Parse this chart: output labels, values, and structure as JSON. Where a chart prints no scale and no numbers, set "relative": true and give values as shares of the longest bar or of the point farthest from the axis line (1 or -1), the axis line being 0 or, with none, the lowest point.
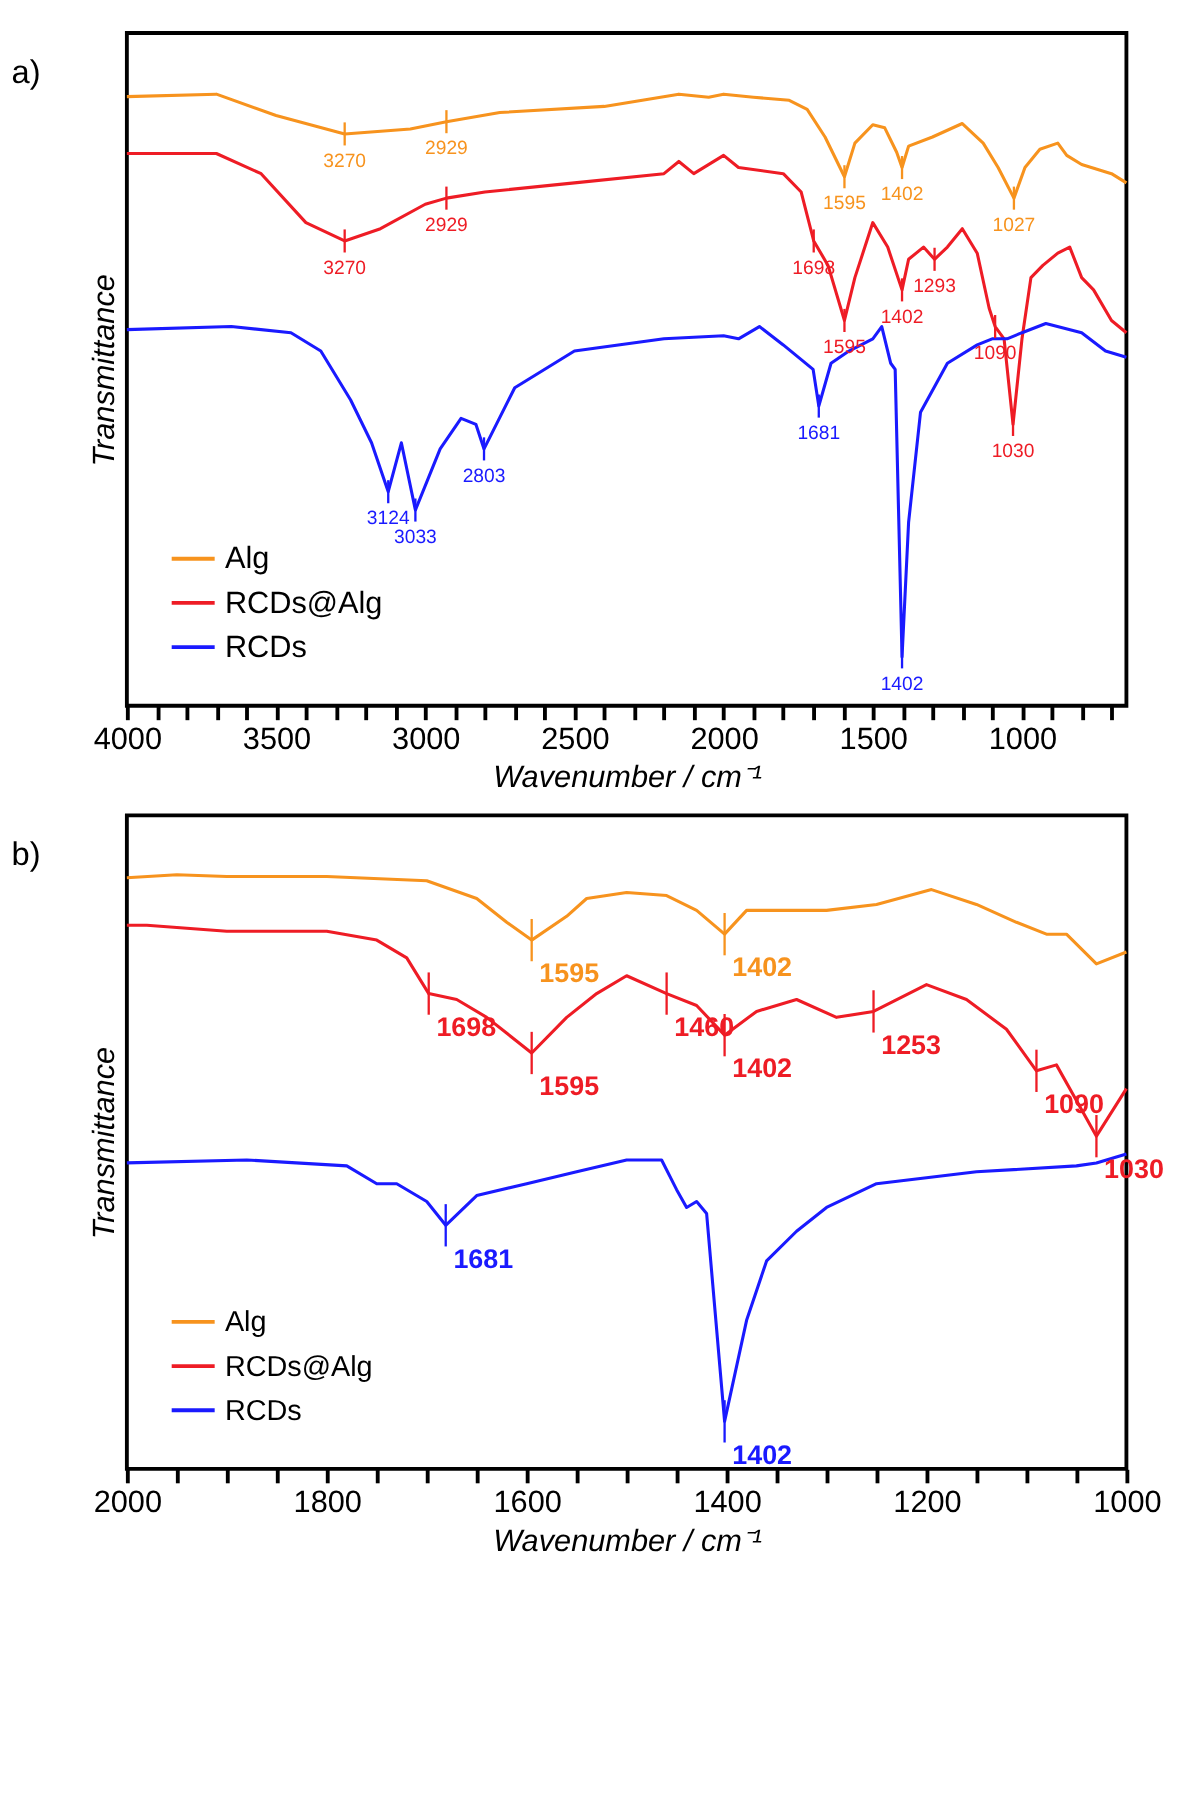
{
  "chart_data": [
    {
      "type": "line",
      "title": "a)",
      "xlabel": "Wavenumber / cm⁻¹",
      "ylabel": "Transmittance",
      "relative": true,
      "legend": "bottom left",
      "grid": false,
      "tick_labels": "x",
      "marker": "none",
      "line_style": "solid",
      "xlim": [
        4000,
        650
      ],
      "xticks": [
        4000,
        {
          "value": 3900,
          "label": null
        },
        {
          "value": 3800,
          "label": null
        },
        {
          "value": 3700,
          "label": null
        },
        {
          "value": 3600,
          "label": null
        },
        3500,
        {
          "value": 3400,
          "label": null
        },
        {
          "value": 3300,
          "label": null
        },
        {
          "value": 3200,
          "label": null
        },
        {
          "value": 3100,
          "label": null
        },
        3000,
        {
          "value": 2900,
          "label": null
        },
        {
          "value": 2800,
          "label": null
        },
        {
          "value": 2700,
          "label": null
        },
        {
          "value": 2600,
          "label": null
        },
        2500,
        {
          "value": 2400,
          "label": null
        },
        {
          "value": 2300,
          "label": null
        },
        {
          "value": 2200,
          "label": null
        },
        {
          "value": 2100,
          "label": null
        },
        2000,
        {
          "value": 1900,
          "label": null
        },
        {
          "value": 1800,
          "label": null
        },
        {
          "value": 1700,
          "label": null
        },
        {
          "value": 1600,
          "label": null
        },
        1500,
        {
          "value": 1400,
          "label": null
        },
        {
          "value": 1300,
          "label": null
        },
        {
          "value": 1200,
          "label": null
        },
        {
          "value": 1100,
          "label": null
        },
        1000,
        {
          "value": 900,
          "label": null
        },
        {
          "value": 800,
          "label": null
        },
        {
          "value": 700,
          "label": null
        }
      ],
      "series": [
        {
          "name": "Alg",
          "color": "#f7931e",
          "x": [
            4000,
            3700,
            3500,
            3270,
            3050,
            2929,
            2750,
            2400,
            2150,
            2050,
            2000,
            1900,
            1780,
            1720,
            1660,
            1595,
            1560,
            1500,
            1460,
            1420,
            1402,
            1380,
            1300,
            1200,
            1130,
            1080,
            1027,
            990,
            940,
            880,
            850,
            800,
            700,
            650
          ],
          "values": [
            0.996,
            1.0,
            0.965,
            0.935,
            0.943,
            0.955,
            0.97,
            0.98,
            1.0,
            0.995,
            1.0,
            0.995,
            0.99,
            0.975,
            0.93,
            0.865,
            0.92,
            0.95,
            0.945,
            0.905,
            0.88,
            0.915,
            0.93,
            0.952,
            0.92,
            0.88,
            0.83,
            0.88,
            0.91,
            0.92,
            0.9,
            0.885,
            0.87,
            0.855
          ]
        },
        {
          "name": "RCDs@Alg",
          "color": "#ee1c25",
          "x": [
            4000,
            3700,
            3550,
            3400,
            3270,
            3150,
            3000,
            2929,
            2800,
            2500,
            2200,
            2150,
            2100,
            2000,
            1950,
            1800,
            1740,
            1698,
            1650,
            1595,
            1560,
            1500,
            1450,
            1402,
            1380,
            1330,
            1293,
            1250,
            1200,
            1150,
            1110,
            1090,
            1060,
            1030,
            1000,
            970,
            930,
            880,
            840,
            800,
            760,
            700,
            650
          ],
          "values": [
            0.903,
            0.903,
            0.87,
            0.79,
            0.76,
            0.78,
            0.82,
            0.83,
            0.84,
            0.855,
            0.87,
            0.89,
            0.87,
            0.9,
            0.88,
            0.87,
            0.84,
            0.76,
            0.72,
            0.63,
            0.7,
            0.79,
            0.75,
            0.68,
            0.73,
            0.75,
            0.73,
            0.75,
            0.78,
            0.74,
            0.65,
            0.62,
            0.6,
            0.46,
            0.6,
            0.7,
            0.72,
            0.74,
            0.75,
            0.7,
            0.68,
            0.63,
            0.61
          ]
        },
        {
          "name": "RCDs",
          "color": "#1a1aff",
          "x": [
            4000,
            3650,
            3450,
            3350,
            3250,
            3180,
            3124,
            3080,
            3033,
            2950,
            2880,
            2830,
            2803,
            2700,
            2500,
            2200,
            2000,
            1950,
            1880,
            1800,
            1750,
            1700,
            1681,
            1640,
            1580,
            1500,
            1470,
            1440,
            1425,
            1402,
            1380,
            1340,
            1250,
            1150,
            1100,
            1050,
            1000,
            920,
            800,
            720,
            650
          ],
          "values": [
            0.615,
            0.62,
            0.61,
            0.58,
            0.5,
            0.43,
            0.35,
            0.43,
            0.32,
            0.42,
            0.47,
            0.46,
            0.42,
            0.52,
            0.58,
            0.6,
            0.605,
            0.6,
            0.62,
            0.59,
            0.57,
            0.55,
            0.49,
            0.56,
            0.58,
            0.6,
            0.62,
            0.56,
            0.55,
            0.08,
            0.3,
            0.48,
            0.56,
            0.59,
            0.6,
            0.6,
            0.61,
            0.625,
            0.61,
            0.58,
            0.57
          ]
        }
      ],
      "annotations": [
        {
          "text": "3270",
          "x": 3270,
          "y": 0.935
        },
        {
          "text": "2929",
          "x": 2929,
          "y": 0.955
        },
        {
          "text": "1595",
          "x": 1595,
          "y": 0.865
        },
        {
          "text": "1402",
          "x": 1402,
          "y": 0.88
        },
        {
          "text": "1027",
          "x": 1027,
          "y": 0.83
        },
        {
          "text": "3270",
          "x": 3270,
          "y": 0.76
        },
        {
          "text": "2929",
          "x": 2929,
          "y": 0.83
        },
        {
          "text": "1698",
          "x": 1698,
          "y": 0.76
        },
        {
          "text": "1595",
          "x": 1595,
          "y": 0.63
        },
        {
          "text": "1402",
          "x": 1402,
          "y": 0.68
        },
        {
          "text": "1293",
          "x": 1293,
          "y": 0.73
        },
        {
          "text": "1090",
          "x": 1090,
          "y": 0.62
        },
        {
          "text": "1030",
          "x": 1030,
          "y": 0.46
        },
        {
          "text": "3124",
          "x": 3124,
          "y": 0.35
        },
        {
          "text": "3033",
          "x": 3033,
          "y": 0.32
        },
        {
          "text": "2803",
          "x": 2803,
          "y": 0.42
        },
        {
          "text": "1681",
          "x": 1681,
          "y": 0.49
        },
        {
          "text": "1402",
          "x": 1402,
          "y": 0.08
        }
      ]
    },
    {
      "type": "line",
      "title": "b)",
      "xlabel": "Wavenumber / cm⁻¹",
      "ylabel": "Transmittance",
      "relative": true,
      "legend": "bottom left",
      "grid": false,
      "tick_labels": "x",
      "marker": "none",
      "line_style": "solid",
      "xlim": [
        2000,
        1000
      ],
      "xticks": [
        2000,
        {
          "value": 1950,
          "label": null
        },
        {
          "value": 1900,
          "label": null
        },
        {
          "value": 1850,
          "label": null
        },
        1800,
        {
          "value": 1750,
          "label": null
        },
        {
          "value": 1700,
          "label": null
        },
        {
          "value": 1650,
          "label": null
        },
        1600,
        {
          "value": 1550,
          "label": null
        },
        {
          "value": 1500,
          "label": null
        },
        {
          "value": 1450,
          "label": null
        },
        1400,
        {
          "value": 1350,
          "label": null
        },
        {
          "value": 1300,
          "label": null
        },
        {
          "value": 1250,
          "label": null
        },
        1200,
        {
          "value": 1150,
          "label": null
        },
        {
          "value": 1100,
          "label": null
        },
        {
          "value": 1050,
          "label": null
        },
        1000
      ],
      "series": [
        {
          "name": "Alg",
          "color": "#f7931e",
          "x": [
            2000,
            1950,
            1900,
            1800,
            1700,
            1650,
            1620,
            1595,
            1560,
            1540,
            1500,
            1460,
            1430,
            1402,
            1380,
            1300,
            1250,
            1195,
            1150,
            1110,
            1080,
            1060,
            1030,
            1000
          ],
          "values": [
            0.995,
            1.0,
            0.997,
            0.997,
            0.99,
            0.96,
            0.92,
            0.89,
            0.93,
            0.96,
            0.97,
            0.965,
            0.94,
            0.9,
            0.94,
            0.94,
            0.95,
            0.975,
            0.95,
            0.92,
            0.9,
            0.9,
            0.85,
            0.87
          ]
        },
        {
          "name": "RCDs@Alg",
          "color": "#ee1c25",
          "x": [
            2000,
            1980,
            1900,
            1800,
            1750,
            1720,
            1698,
            1670,
            1640,
            1595,
            1560,
            1530,
            1500,
            1460,
            1430,
            1402,
            1370,
            1330,
            1290,
            1253,
            1200,
            1160,
            1120,
            1090,
            1070,
            1050,
            1030,
            1015,
            1000
          ],
          "values": [
            0.915,
            0.915,
            0.905,
            0.905,
            0.89,
            0.86,
            0.8,
            0.79,
            0.76,
            0.7,
            0.76,
            0.8,
            0.83,
            0.8,
            0.78,
            0.73,
            0.77,
            0.79,
            0.76,
            0.77,
            0.815,
            0.79,
            0.74,
            0.67,
            0.68,
            0.62,
            0.56,
            0.6,
            0.64
          ]
        },
        {
          "name": "RCDs",
          "color": "#1a1aff",
          "x": [
            2000,
            1880,
            1780,
            1750,
            1730,
            1700,
            1681,
            1650,
            1600,
            1550,
            1500,
            1465,
            1450,
            1440,
            1430,
            1420,
            1402,
            1380,
            1360,
            1330,
            1300,
            1250,
            1150,
            1050,
            1030,
            1000
          ],
          "values": [
            0.515,
            0.52,
            0.51,
            0.48,
            0.48,
            0.45,
            0.41,
            0.46,
            0.48,
            0.5,
            0.52,
            0.52,
            0.47,
            0.44,
            0.45,
            0.43,
            0.08,
            0.25,
            0.35,
            0.4,
            0.44,
            0.48,
            0.5,
            0.51,
            0.515,
            0.53
          ]
        }
      ],
      "annotations": [
        {
          "text": "1595",
          "x": 1595,
          "y": 0.89
        },
        {
          "text": "1402",
          "x": 1402,
          "y": 0.9
        },
        {
          "text": "1698",
          "x": 1698,
          "y": 0.8
        },
        {
          "text": "1595",
          "x": 1595,
          "y": 0.7
        },
        {
          "text": "1460",
          "x": 1460,
          "y": 0.8
        },
        {
          "text": "1402",
          "x": 1402,
          "y": 0.73
        },
        {
          "text": "1253",
          "x": 1253,
          "y": 0.77
        },
        {
          "text": "1090",
          "x": 1090,
          "y": 0.67
        },
        {
          "text": "1030",
          "x": 1030,
          "y": 0.56
        },
        {
          "text": "1681",
          "x": 1681,
          "y": 0.41
        },
        {
          "text": "1402",
          "x": 1402,
          "y": 0.08
        }
      ]
    }
  ]
}
